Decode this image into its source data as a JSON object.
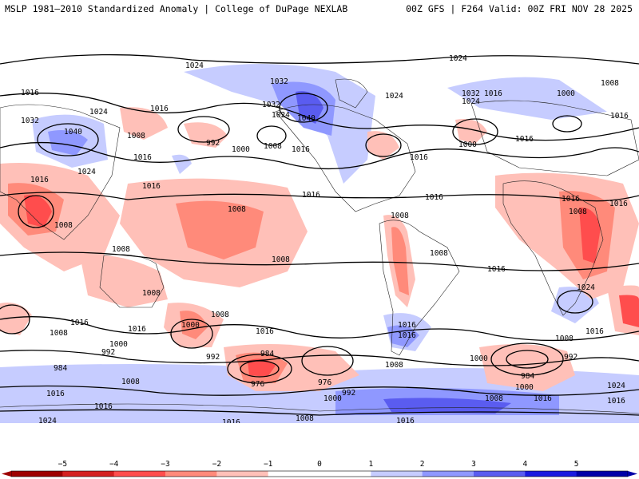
{
  "header": {
    "left": "MSLP 1981–2010 Standardized Anomaly | College of DuPage NEXLAB",
    "right": "00Z GFS | F264 Valid: 00Z FRI NOV 28 2025"
  },
  "scale": {
    "ticks": [
      "−5",
      "−4",
      "−3",
      "−2",
      "−1",
      "0",
      "1",
      "2",
      "3",
      "4",
      "5"
    ],
    "colors": [
      "#9e0000",
      "#d42020",
      "#ff4d4d",
      "#ff8a7a",
      "#ffc0b8",
      "#ffffff",
      "#ffffff",
      "#c6ccff",
      "#8f98ff",
      "#5a5cf0",
      "#1a1ae0",
      "#0000a8"
    ]
  },
  "isobars": [
    {
      "text": "1024"
    },
    {
      "text": "1024"
    },
    {
      "text": "1032"
    },
    {
      "text": "1016"
    },
    {
      "text": "1024"
    },
    {
      "text": "1016"
    },
    {
      "text": "1032"
    },
    {
      "text": "1040"
    },
    {
      "text": "1032"
    },
    {
      "text": "1040"
    },
    {
      "text": "1024"
    },
    {
      "text": "1024"
    },
    {
      "text": "1032"
    },
    {
      "text": "1024"
    },
    {
      "text": "1016"
    },
    {
      "text": "1000"
    },
    {
      "text": "1008"
    },
    {
      "text": "1016"
    },
    {
      "text": "1008"
    },
    {
      "text": "992"
    },
    {
      "text": "1008"
    },
    {
      "text": "1000"
    },
    {
      "text": "1016"
    },
    {
      "text": "1016"
    },
    {
      "text": "1000"
    },
    {
      "text": "1016"
    },
    {
      "text": "1016"
    },
    {
      "text": "1024"
    },
    {
      "text": "1016"
    },
    {
      "text": "1016"
    },
    {
      "text": "1016"
    },
    {
      "text": "1008"
    },
    {
      "text": "1016"
    },
    {
      "text": "1008"
    },
    {
      "text": "1016"
    },
    {
      "text": "1016"
    },
    {
      "text": "1008"
    },
    {
      "text": "1008"
    },
    {
      "text": "1008"
    },
    {
      "text": "1008"
    },
    {
      "text": "1008"
    },
    {
      "text": "1016"
    },
    {
      "text": "1008"
    },
    {
      "text": "1024"
    },
    {
      "text": "1016"
    },
    {
      "text": "1008"
    },
    {
      "text": "1016"
    },
    {
      "text": "1016"
    },
    {
      "text": "1000"
    },
    {
      "text": "1008"
    },
    {
      "text": "1016"
    },
    {
      "text": "1016"
    },
    {
      "text": "1000"
    },
    {
      "text": "992"
    },
    {
      "text": "992"
    },
    {
      "text": "1008"
    },
    {
      "text": "1016"
    },
    {
      "text": "984"
    },
    {
      "text": "984"
    },
    {
      "text": "976"
    },
    {
      "text": "976"
    },
    {
      "text": "1000"
    },
    {
      "text": "992"
    },
    {
      "text": "1008"
    },
    {
      "text": "1000"
    },
    {
      "text": "992"
    },
    {
      "text": "984"
    },
    {
      "text": "1000"
    },
    {
      "text": "1008"
    },
    {
      "text": "1016"
    },
    {
      "text": "1016"
    },
    {
      "text": "1008"
    },
    {
      "text": "1016"
    },
    {
      "text": "1024"
    },
    {
      "text": "1016"
    },
    {
      "text": "1008"
    },
    {
      "text": "1016"
    },
    {
      "text": "1024"
    },
    {
      "text": "1016"
    }
  ]
}
